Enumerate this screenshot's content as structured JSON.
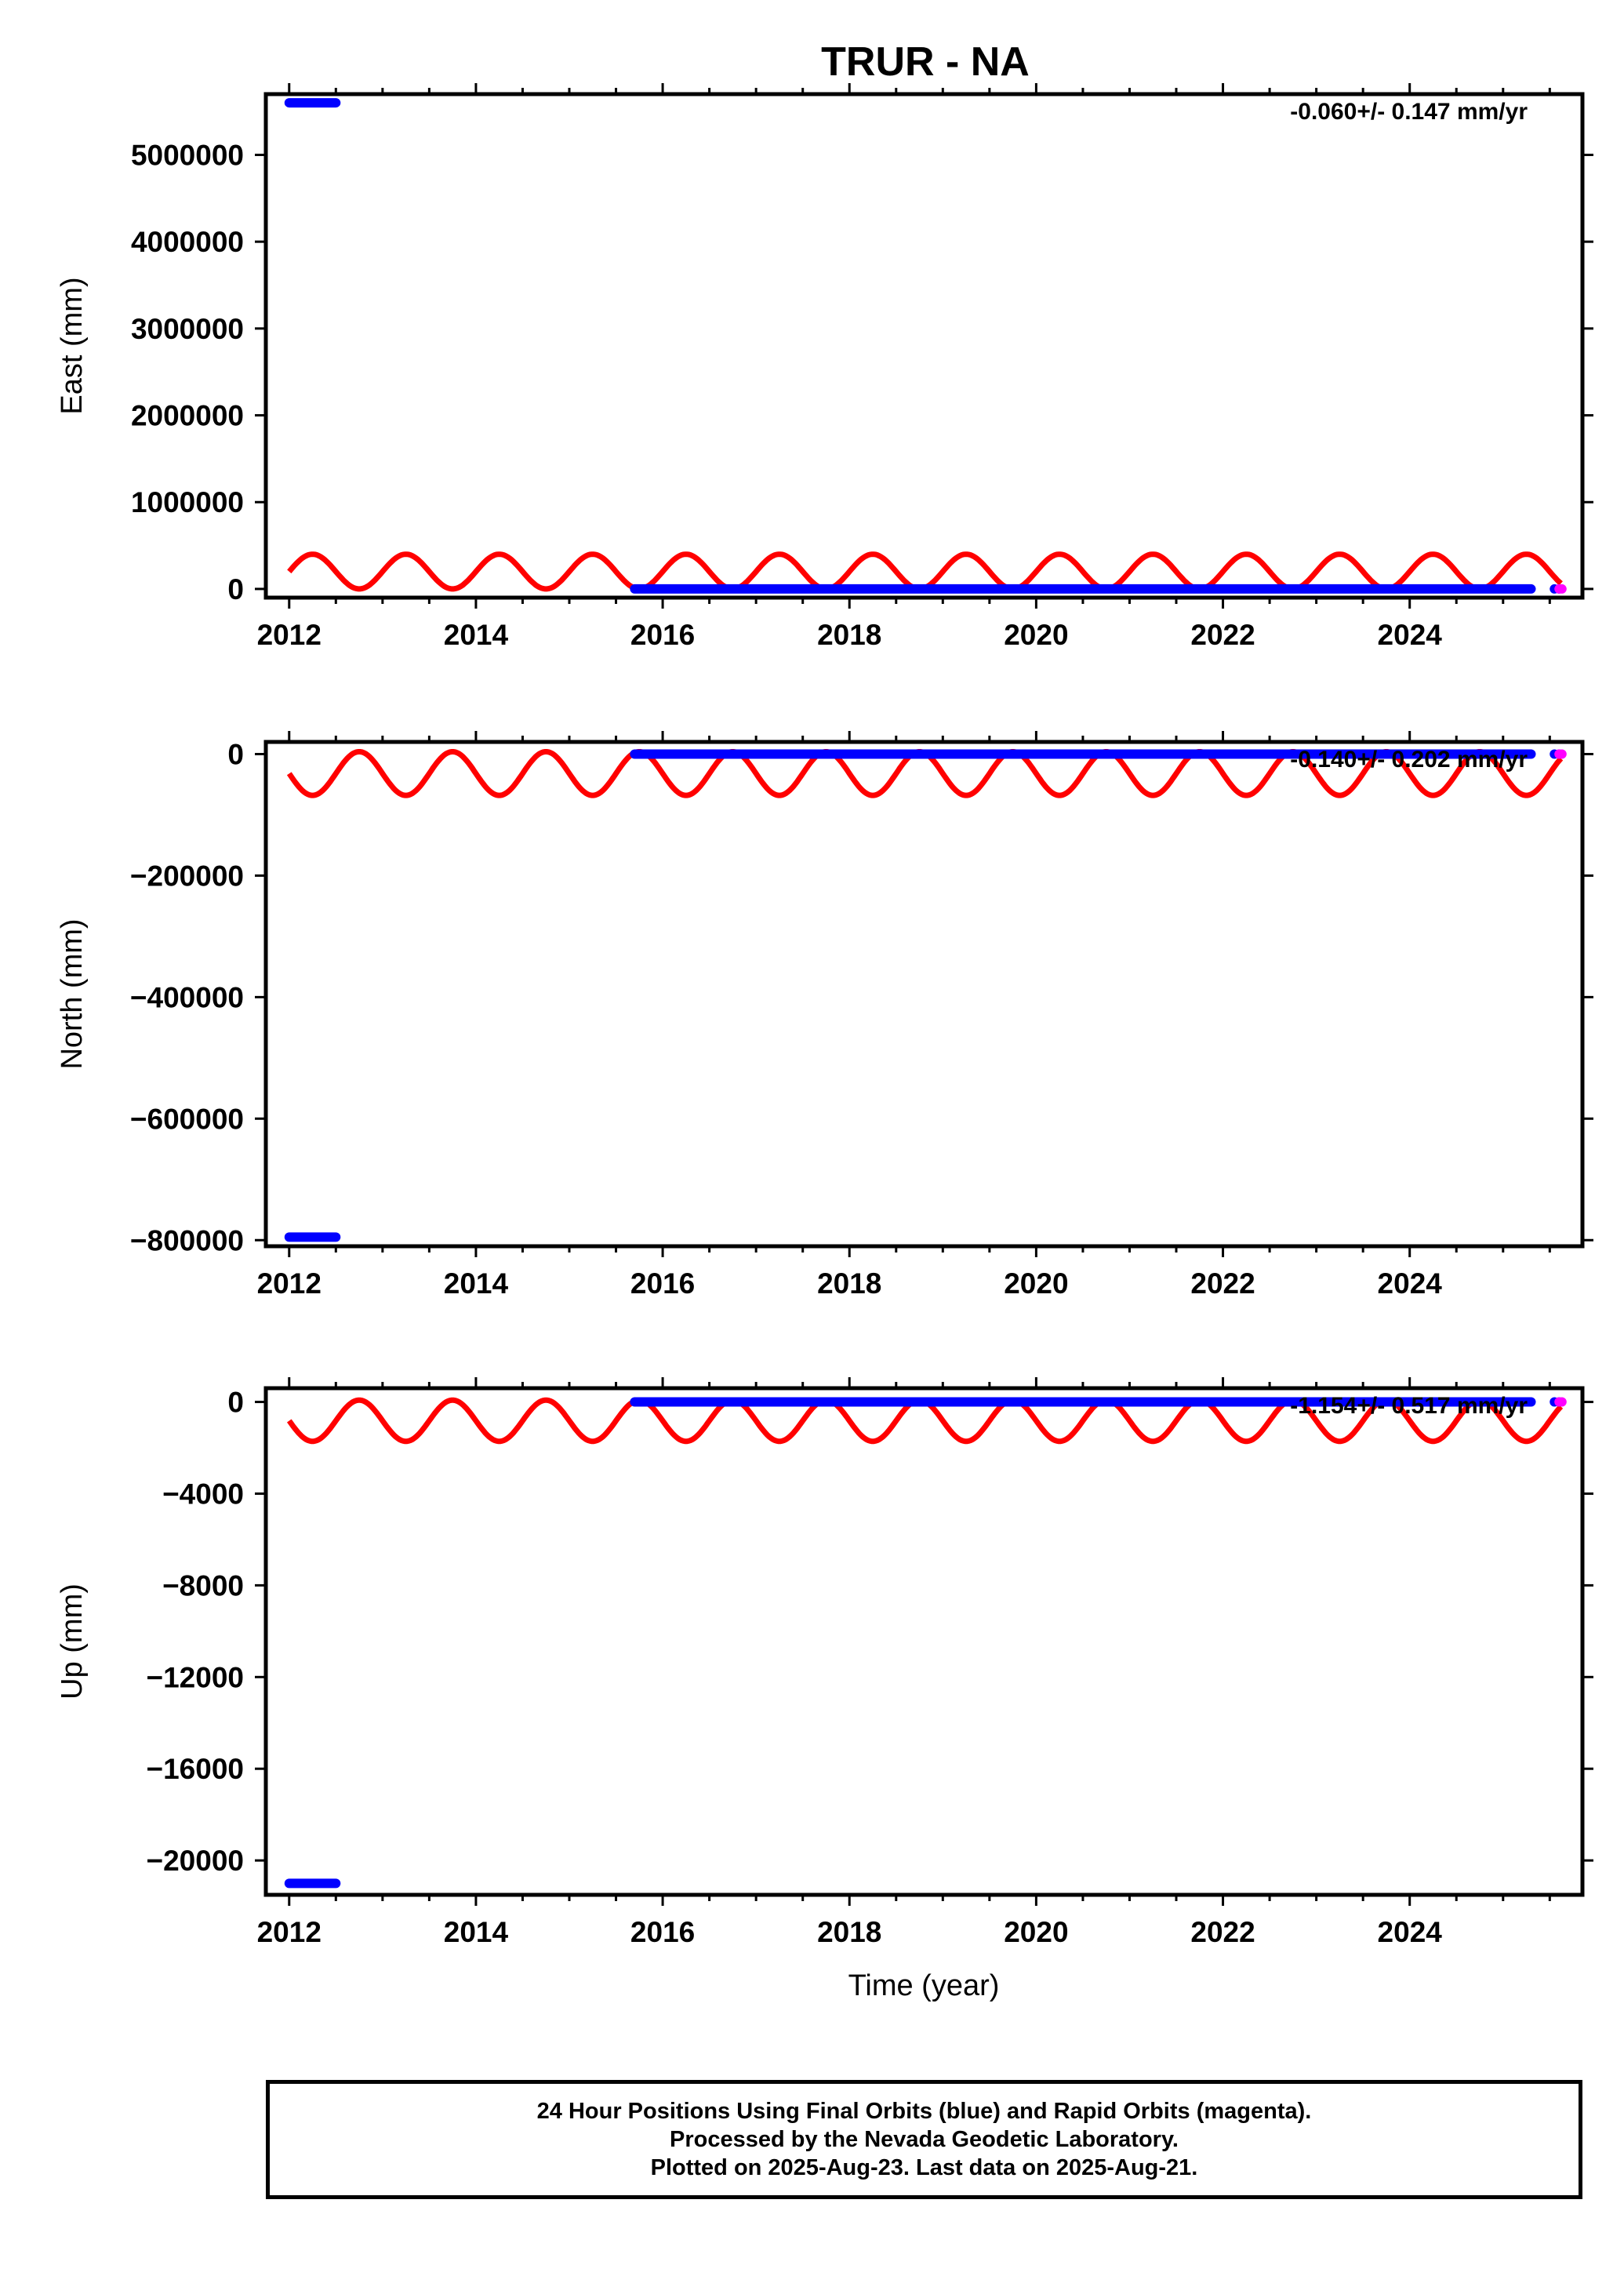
{
  "chart_data": {
    "type": "scatter",
    "title": "TRUR - NA",
    "xlabel": "Time (year)",
    "x_ticks": [
      2012,
      2014,
      2016,
      2018,
      2020,
      2022,
      2024
    ],
    "xlim": [
      2011.75,
      2025.85
    ],
    "colors": {
      "final": "#0000ff",
      "rapid": "#ff00ff",
      "seasonal": "#ff0000"
    },
    "panels": [
      {
        "id": "east",
        "ylabel": "East (mm)",
        "ylim": [
          -100000,
          5700000
        ],
        "y_ticks": [
          0,
          1000000,
          2000000,
          3000000,
          4000000,
          5000000
        ],
        "y_tick_labels": [
          "0",
          "1000000",
          "2000000",
          "3000000",
          "4000000",
          "5000000"
        ],
        "velocity": "-0.060+/- 0.147 mm/yr",
        "final_segments": [
          {
            "x_start": 2012.0,
            "x_end": 2012.5,
            "y": 5600000
          },
          {
            "x_start": 2015.7,
            "x_end": 2025.3,
            "y": 0
          }
        ],
        "final_points": [
          2025.55,
          2025.6
        ],
        "rapid_points": [
          2025.6,
          2025.63
        ],
        "seasonal": {
          "offset": 200000,
          "amplitude": 200000,
          "phase_year": 2012.25
        }
      },
      {
        "id": "north",
        "ylabel": "North (mm)",
        "ylim": [
          -810000,
          20000
        ],
        "y_ticks": [
          0,
          -200000,
          -400000,
          -600000,
          -800000
        ],
        "y_tick_labels": [
          "0",
          "−200000",
          "−400000",
          "−600000",
          "−800000"
        ],
        "velocity": "-0.140+/- 0.202 mm/yr",
        "final_segments": [
          {
            "x_start": 2012.0,
            "x_end": 2012.5,
            "y": -795000
          },
          {
            "x_start": 2015.7,
            "x_end": 2025.3,
            "y": 0
          }
        ],
        "final_points": [
          2025.55,
          2025.6
        ],
        "rapid_points": [
          2025.6,
          2025.63
        ],
        "seasonal": {
          "offset": -32000,
          "amplitude": 36000,
          "phase_year": 2012.75
        }
      },
      {
        "id": "up",
        "ylabel": "Up (mm)",
        "ylim": [
          -21500,
          600
        ],
        "y_ticks": [
          0,
          -4000,
          -8000,
          -12000,
          -16000,
          -20000
        ],
        "y_tick_labels": [
          "0",
          "−4000",
          "−8000",
          "−12000",
          "−16000",
          "−20000"
        ],
        "velocity": "-1.154+/- 0.517 mm/yr",
        "final_segments": [
          {
            "x_start": 2012.0,
            "x_end": 2012.5,
            "y": -21000
          },
          {
            "x_start": 2015.7,
            "x_end": 2025.3,
            "y": 0
          }
        ],
        "final_points": [
          2025.55,
          2025.6
        ],
        "rapid_points": [
          2025.6,
          2025.63
        ],
        "seasonal": {
          "offset": -820,
          "amplitude": 900,
          "phase_year": 2012.75
        }
      }
    ]
  },
  "footer": {
    "line1": "24 Hour Positions Using Final Orbits (blue) and Rapid Orbits (magenta).",
    "line2": "Processed by the Nevada Geodetic Laboratory.",
    "line3": "Plotted on 2025-Aug-23. Last data on 2025-Aug-21."
  }
}
